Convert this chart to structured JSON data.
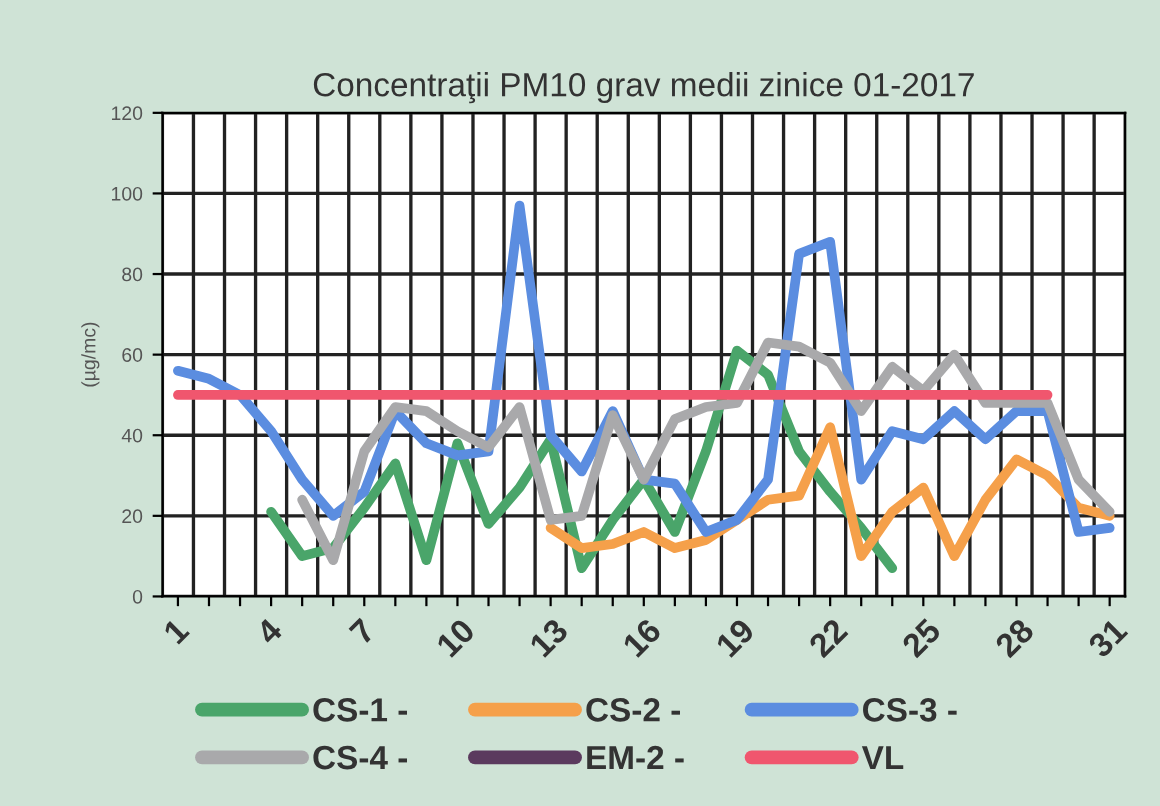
{
  "chart_data": {
    "type": "line",
    "title": "Concentraţii PM10 grav medii zinice 01-2017",
    "ylabel": "(µg/mc)",
    "categories": [
      "1",
      null,
      null,
      "4",
      null,
      null,
      "7",
      null,
      null,
      "10",
      null,
      null,
      "13",
      null,
      null,
      "16",
      null,
      null,
      "19",
      null,
      null,
      "22",
      null,
      null,
      "25",
      null,
      null,
      "28",
      null,
      null,
      "31"
    ],
    "ylim": [
      0,
      120
    ],
    "yticks": [
      0,
      20,
      40,
      60,
      80,
      100,
      120
    ],
    "grid": true,
    "legend": "bottom",
    "marker": "none",
    "line_style": "solid",
    "series": [
      {
        "name": "CS-1 -",
        "color": "#4aa56a",
        "values": [
          null,
          null,
          null,
          21,
          10,
          12,
          22,
          33,
          9,
          38,
          18,
          27,
          39,
          7,
          19,
          29,
          16,
          36,
          61,
          55,
          36,
          26,
          17,
          7,
          null,
          null,
          null,
          null,
          null,
          null,
          null
        ]
      },
      {
        "name": "CS-2 -",
        "color": "#f5a04a",
        "values": [
          null,
          null,
          null,
          null,
          null,
          null,
          null,
          null,
          null,
          null,
          null,
          null,
          17,
          12,
          13,
          16,
          12,
          14,
          19,
          24,
          25,
          42,
          10,
          21,
          27,
          10,
          24,
          34,
          30,
          22,
          20
        ]
      },
      {
        "name": "CS-3 -",
        "color": "#5b8de0",
        "values": [
          56,
          54,
          50,
          41,
          29,
          20,
          26,
          46,
          38,
          35,
          36,
          97,
          40,
          31,
          46,
          29,
          28,
          16,
          19,
          29,
          85,
          88,
          29,
          41,
          39,
          46,
          39,
          46,
          46,
          16,
          17
        ]
      },
      {
        "name": "CS-4 -",
        "color": "#a9a9ab",
        "values": [
          null,
          null,
          null,
          null,
          24,
          9,
          36,
          47,
          46,
          41,
          37,
          47,
          19,
          20,
          45,
          29,
          44,
          47,
          48,
          63,
          62,
          58,
          46,
          57,
          51,
          60,
          48,
          48,
          48,
          29,
          21
        ]
      },
      {
        "name": "EM-2 -",
        "color": "#5b3a5e",
        "values": [
          null,
          null,
          null,
          null,
          null,
          null,
          null,
          null,
          null,
          null,
          null,
          null,
          null,
          null,
          null,
          null,
          null,
          null,
          null,
          null,
          null,
          null,
          null,
          null,
          null,
          null,
          null,
          null,
          null,
          null,
          null
        ]
      },
      {
        "name": "VL",
        "color": "#f0566e",
        "values": [
          50,
          50,
          50,
          50,
          50,
          50,
          50,
          50,
          50,
          50,
          50,
          50,
          50,
          50,
          50,
          50,
          50,
          50,
          50,
          50,
          50,
          50,
          50,
          50,
          50,
          50,
          50,
          50,
          50,
          null,
          null
        ]
      }
    ]
  }
}
